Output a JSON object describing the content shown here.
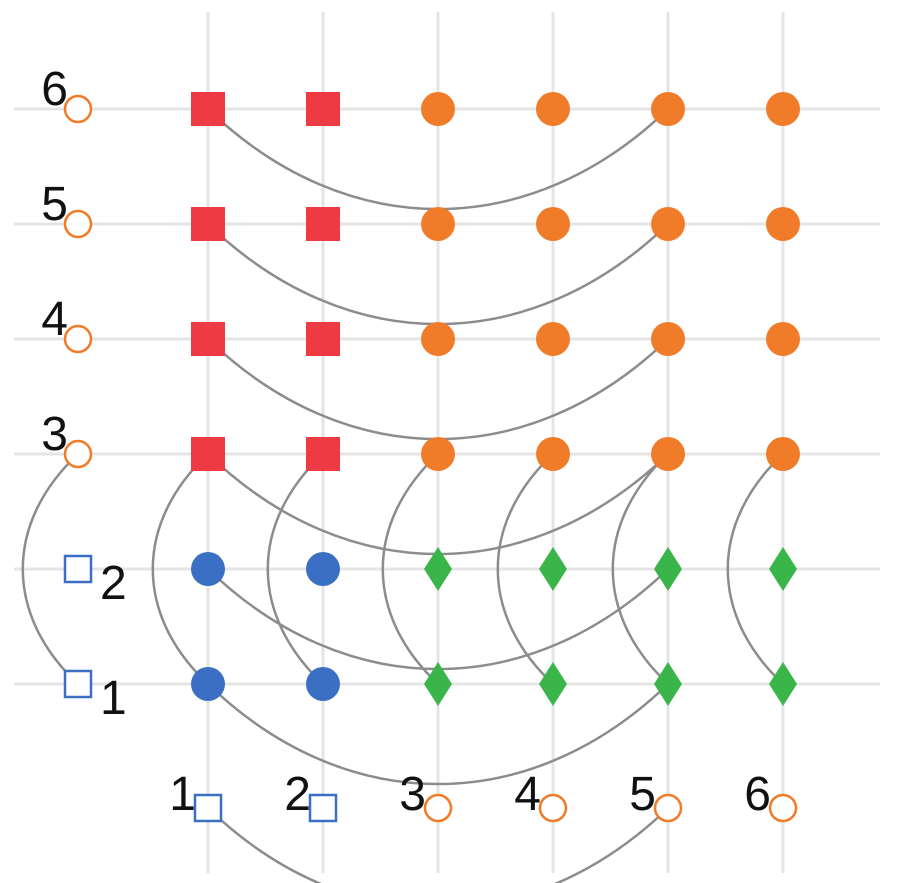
{
  "chart_data": {
    "type": "diagram",
    "columns": [
      "1",
      "2",
      "3",
      "4",
      "5",
      "6"
    ],
    "rows": [
      "1",
      "2",
      "3",
      "4",
      "5",
      "6"
    ],
    "column_markers": [
      {
        "label": "1",
        "marker": "square",
        "color": "#3A6FC4"
      },
      {
        "label": "2",
        "marker": "square",
        "color": "#3A6FC4"
      },
      {
        "label": "3",
        "marker": "circle",
        "color": "#F07C2A"
      },
      {
        "label": "4",
        "marker": "circle",
        "color": "#F07C2A"
      },
      {
        "label": "5",
        "marker": "circle",
        "color": "#F07C2A"
      },
      {
        "label": "6",
        "marker": "circle",
        "color": "#F07C2A"
      }
    ],
    "row_markers": [
      {
        "label": "1",
        "marker": "square",
        "color": "#3A6FC4"
      },
      {
        "label": "2",
        "marker": "square",
        "color": "#3A6FC4"
      },
      {
        "label": "3",
        "marker": "circle",
        "color": "#F07C2A"
      },
      {
        "label": "4",
        "marker": "circle",
        "color": "#F07C2A"
      },
      {
        "label": "5",
        "marker": "circle",
        "color": "#F07C2A"
      },
      {
        "label": "6",
        "marker": "circle",
        "color": "#F07C2A"
      }
    ],
    "cells": [
      {
        "col": 1,
        "row": 1,
        "marker": "circle",
        "color": "#3A6FC4"
      },
      {
        "col": 2,
        "row": 1,
        "marker": "circle",
        "color": "#3A6FC4"
      },
      {
        "col": 3,
        "row": 1,
        "marker": "diamond",
        "color": "#3AB54A"
      },
      {
        "col": 4,
        "row": 1,
        "marker": "diamond",
        "color": "#3AB54A"
      },
      {
        "col": 5,
        "row": 1,
        "marker": "diamond",
        "color": "#3AB54A"
      },
      {
        "col": 6,
        "row": 1,
        "marker": "diamond",
        "color": "#3AB54A"
      },
      {
        "col": 1,
        "row": 2,
        "marker": "circle",
        "color": "#3A6FC4"
      },
      {
        "col": 2,
        "row": 2,
        "marker": "circle",
        "color": "#3A6FC4"
      },
      {
        "col": 3,
        "row": 2,
        "marker": "diamond",
        "color": "#3AB54A"
      },
      {
        "col": 4,
        "row": 2,
        "marker": "diamond",
        "color": "#3AB54A"
      },
      {
        "col": 5,
        "row": 2,
        "marker": "diamond",
        "color": "#3AB54A"
      },
      {
        "col": 6,
        "row": 2,
        "marker": "diamond",
        "color": "#3AB54A"
      },
      {
        "col": 1,
        "row": 3,
        "marker": "square",
        "color": "#EE3A43"
      },
      {
        "col": 2,
        "row": 3,
        "marker": "square",
        "color": "#EE3A43"
      },
      {
        "col": 3,
        "row": 3,
        "marker": "circle",
        "color": "#F07C2A"
      },
      {
        "col": 4,
        "row": 3,
        "marker": "circle",
        "color": "#F07C2A"
      },
      {
        "col": 5,
        "row": 3,
        "marker": "circle",
        "color": "#F07C2A"
      },
      {
        "col": 6,
        "row": 3,
        "marker": "circle",
        "color": "#F07C2A"
      },
      {
        "col": 1,
        "row": 4,
        "marker": "square",
        "color": "#EE3A43"
      },
      {
        "col": 2,
        "row": 4,
        "marker": "square",
        "color": "#EE3A43"
      },
      {
        "col": 3,
        "row": 4,
        "marker": "circle",
        "color": "#F07C2A"
      },
      {
        "col": 4,
        "row": 4,
        "marker": "circle",
        "color": "#F07C2A"
      },
      {
        "col": 5,
        "row": 4,
        "marker": "circle",
        "color": "#F07C2A"
      },
      {
        "col": 6,
        "row": 4,
        "marker": "circle",
        "color": "#F07C2A"
      },
      {
        "col": 1,
        "row": 5,
        "marker": "square",
        "color": "#EE3A43"
      },
      {
        "col": 2,
        "row": 5,
        "marker": "square",
        "color": "#EE3A43"
      },
      {
        "col": 3,
        "row": 5,
        "marker": "circle",
        "color": "#F07C2A"
      },
      {
        "col": 4,
        "row": 5,
        "marker": "circle",
        "color": "#F07C2A"
      },
      {
        "col": 5,
        "row": 5,
        "marker": "circle",
        "color": "#F07C2A"
      },
      {
        "col": 6,
        "row": 5,
        "marker": "circle",
        "color": "#F07C2A"
      },
      {
        "col": 1,
        "row": 6,
        "marker": "square",
        "color": "#EE3A43"
      },
      {
        "col": 2,
        "row": 6,
        "marker": "square",
        "color": "#EE3A43"
      },
      {
        "col": 3,
        "row": 6,
        "marker": "circle",
        "color": "#F07C2A"
      },
      {
        "col": 4,
        "row": 6,
        "marker": "circle",
        "color": "#F07C2A"
      },
      {
        "col": 5,
        "row": 6,
        "marker": "circle",
        "color": "#F07C2A"
      },
      {
        "col": 6,
        "row": 6,
        "marker": "circle",
        "color": "#F07C2A"
      }
    ],
    "links": [
      {
        "from": {
          "col": 1,
          "row": 0
        },
        "to": {
          "col": 5,
          "row": 0
        }
      },
      {
        "from": {
          "col": 0,
          "row": 3
        },
        "to": {
          "col": 0,
          "row": 1
        }
      },
      {
        "from": {
          "col": 1,
          "row": 1
        },
        "to": {
          "col": 5,
          "row": 1
        }
      },
      {
        "from": {
          "col": 1,
          "row": 2
        },
        "to": {
          "col": 5,
          "row": 2
        }
      },
      {
        "from": {
          "col": 1,
          "row": 3
        },
        "to": {
          "col": 1,
          "row": 1
        }
      },
      {
        "from": {
          "col": 2,
          "row": 3
        },
        "to": {
          "col": 2,
          "row": 1
        }
      },
      {
        "from": {
          "col": 3,
          "row": 3
        },
        "to": {
          "col": 3,
          "row": 1
        }
      },
      {
        "from": {
          "col": 4,
          "row": 3
        },
        "to": {
          "col": 4,
          "row": 1
        }
      },
      {
        "from": {
          "col": 5,
          "row": 3
        },
        "to": {
          "col": 5,
          "row": 1
        }
      },
      {
        "from": {
          "col": 6,
          "row": 3
        },
        "to": {
          "col": 6,
          "row": 1
        }
      },
      {
        "from": {
          "col": 1,
          "row": 3
        },
        "to": {
          "col": 5,
          "row": 3
        }
      },
      {
        "from": {
          "col": 1,
          "row": 4
        },
        "to": {
          "col": 5,
          "row": 4
        }
      },
      {
        "from": {
          "col": 1,
          "row": 5
        },
        "to": {
          "col": 5,
          "row": 5
        }
      },
      {
        "from": {
          "col": 1,
          "row": 6
        },
        "to": {
          "col": 5,
          "row": 6
        }
      }
    ],
    "colors": {
      "blue": "#3A6FC4",
      "orange": "#F07C2A",
      "red": "#EE3A43",
      "green": "#3AB54A",
      "link": "#8C8C8C",
      "grid": "#E4E4E4"
    }
  }
}
